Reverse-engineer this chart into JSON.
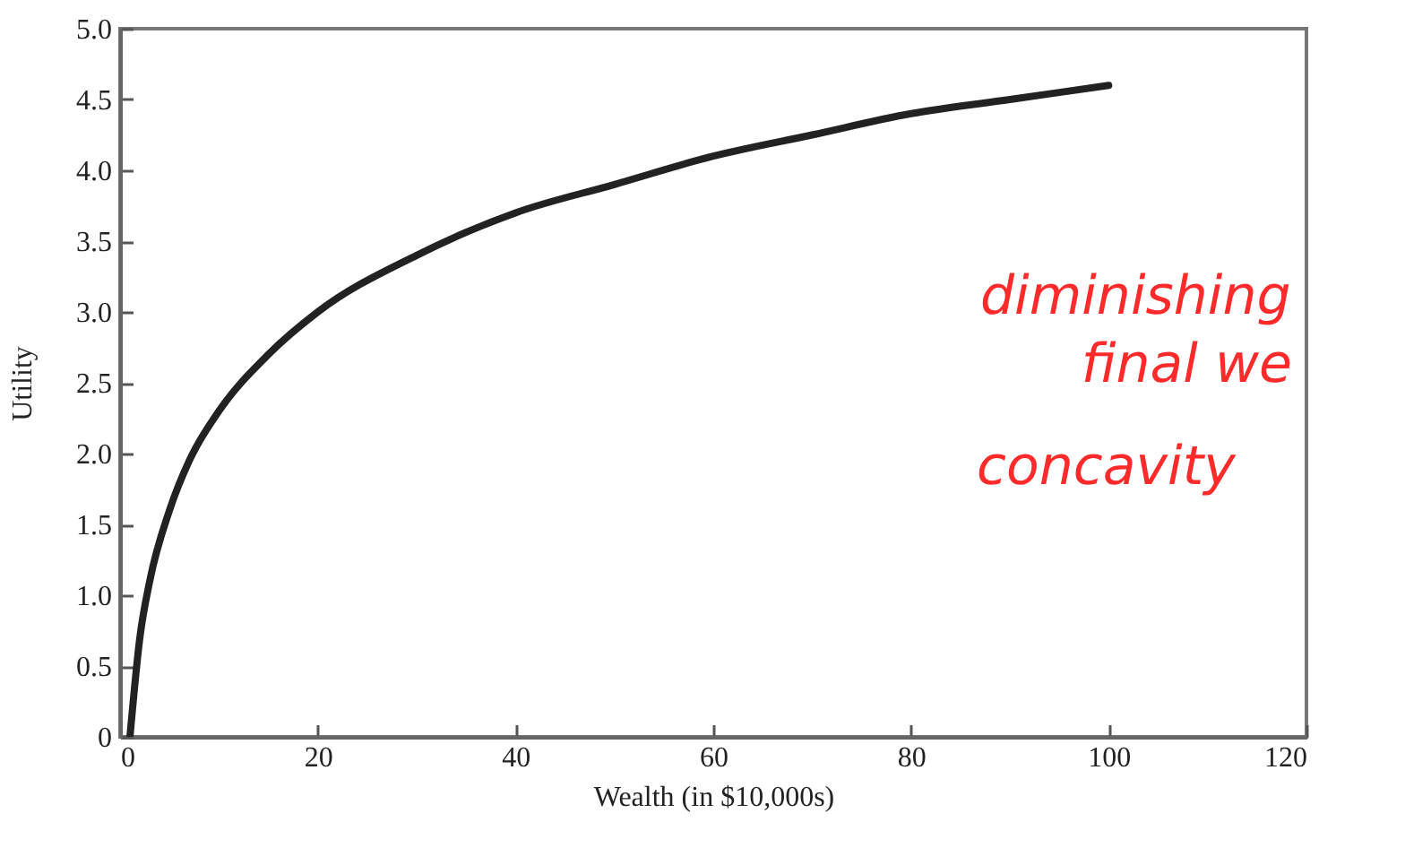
{
  "chart_data": {
    "type": "line",
    "xlabel": "Wealth (in $10,000s)",
    "ylabel": "Utility",
    "x": [
      1,
      2,
      3,
      5,
      7,
      10,
      15,
      20,
      30,
      40,
      50,
      60,
      70,
      80,
      90,
      100
    ],
    "series": [
      {
        "color": "#222222",
        "values": [
          0,
          0.7,
          1.1,
          1.6,
          1.95,
          2.3,
          2.7,
          3.0,
          3.4,
          3.7,
          3.9,
          4.1,
          4.25,
          4.4,
          4.5,
          4.6
        ]
      }
    ],
    "xlim": [
      0,
      120
    ],
    "xticks": [
      0,
      20,
      40,
      60,
      80,
      100,
      120
    ],
    "ylim": [
      0,
      5
    ],
    "yticks": [
      0,
      {
        "value": 0.5,
        "label": "0.5"
      },
      {
        "value": 1,
        "label": "1.0"
      },
      {
        "value": 1.5,
        "label": "1.5"
      },
      {
        "value": 2,
        "label": "2.0"
      },
      {
        "value": 2.5,
        "label": "2.5"
      },
      {
        "value": 3,
        "label": "3.0"
      },
      {
        "value": 3.5,
        "label": "3.5"
      },
      {
        "value": 4,
        "label": "4.0"
      },
      {
        "value": 4.5,
        "label": "4.5"
      },
      {
        "value": 5,
        "label": "5.0"
      }
    ],
    "annotations": [
      "diminishing",
      "final we",
      "concavity"
    ],
    "grid": false,
    "marker": "none",
    "line_style": "solid"
  }
}
